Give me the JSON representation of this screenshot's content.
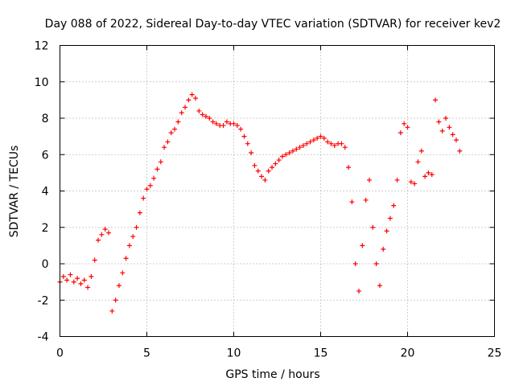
{
  "chart_data": {
    "type": "scatter",
    "title": "Day 088 of 2022, Sidereal Day-to-day VTEC variation (SDTVAR) for receiver kev2",
    "xlabel": "GPS time / hours",
    "ylabel": "SDTVAR / TECUs",
    "xlim": [
      0,
      25
    ],
    "ylim": [
      -4,
      12
    ],
    "xticks": [
      0,
      5,
      10,
      15,
      20,
      25
    ],
    "yticks": [
      -4,
      -2,
      0,
      2,
      4,
      6,
      8,
      10,
      12
    ],
    "grid": true,
    "marker": "+",
    "series": [
      {
        "name": "SDTVAR",
        "color": "#ff0000",
        "x": [
          0.0,
          0.2,
          0.4,
          0.6,
          0.8,
          1.0,
          1.2,
          1.4,
          1.6,
          1.8,
          2.0,
          2.2,
          2.4,
          2.6,
          2.8,
          3.0,
          3.2,
          3.4,
          3.6,
          3.8,
          4.0,
          4.2,
          4.4,
          4.6,
          4.8,
          5.0,
          5.2,
          5.4,
          5.6,
          5.8,
          6.0,
          6.2,
          6.4,
          6.6,
          6.8,
          7.0,
          7.2,
          7.4,
          7.6,
          7.8,
          8.0,
          8.2,
          8.4,
          8.6,
          8.8,
          9.0,
          9.2,
          9.4,
          9.6,
          9.8,
          10.0,
          10.2,
          10.4,
          10.6,
          10.8,
          11.0,
          11.2,
          11.4,
          11.6,
          11.8,
          12.0,
          12.2,
          12.4,
          12.6,
          12.8,
          13.0,
          13.2,
          13.4,
          13.6,
          13.8,
          14.0,
          14.2,
          14.4,
          14.6,
          14.8,
          15.0,
          15.2,
          15.4,
          15.6,
          15.8,
          16.0,
          16.2,
          16.4,
          16.6,
          16.8,
          17.0,
          17.2,
          17.4,
          17.6,
          17.8,
          18.0,
          18.2,
          18.4,
          18.6,
          18.8,
          19.0,
          19.2,
          19.4,
          19.6,
          19.8,
          20.0,
          20.2,
          20.4,
          20.6,
          20.8,
          21.0,
          21.2,
          21.4,
          21.6,
          21.8,
          22.0,
          22.2,
          22.4,
          22.6,
          22.8,
          23.0
        ],
        "y": [
          -1.0,
          -0.7,
          -0.9,
          -0.6,
          -1.0,
          -0.8,
          -1.1,
          -0.9,
          -1.3,
          -0.7,
          0.2,
          1.3,
          1.6,
          1.9,
          1.7,
          -2.6,
          -2.0,
          -1.2,
          -0.5,
          0.3,
          1.0,
          1.5,
          2.0,
          2.8,
          3.6,
          4.1,
          4.3,
          4.7,
          5.2,
          5.6,
          6.4,
          6.7,
          7.2,
          7.4,
          7.8,
          8.3,
          8.6,
          9.0,
          9.3,
          9.1,
          8.4,
          8.2,
          8.1,
          8.0,
          7.8,
          7.7,
          7.6,
          7.6,
          7.8,
          7.7,
          7.7,
          7.6,
          7.4,
          7.0,
          6.6,
          6.1,
          5.4,
          5.1,
          4.8,
          4.6,
          5.1,
          5.3,
          5.5,
          5.7,
          5.9,
          6.0,
          6.1,
          6.2,
          6.3,
          6.4,
          6.5,
          6.6,
          6.7,
          6.8,
          6.9,
          7.0,
          6.9,
          6.7,
          6.6,
          6.5,
          6.6,
          6.6,
          6.4,
          5.3,
          3.4,
          0.0,
          -1.5,
          1.0,
          3.5,
          4.6,
          2.0,
          0.0,
          -1.2,
          0.8,
          1.8,
          2.5,
          3.2,
          4.6,
          7.2,
          7.7,
          7.5,
          4.5,
          4.4,
          5.6,
          6.2,
          4.8,
          5.0,
          4.9,
          9.0,
          7.8,
          7.3,
          8.0,
          7.5,
          7.1,
          6.8,
          6.2
        ]
      }
    ]
  }
}
